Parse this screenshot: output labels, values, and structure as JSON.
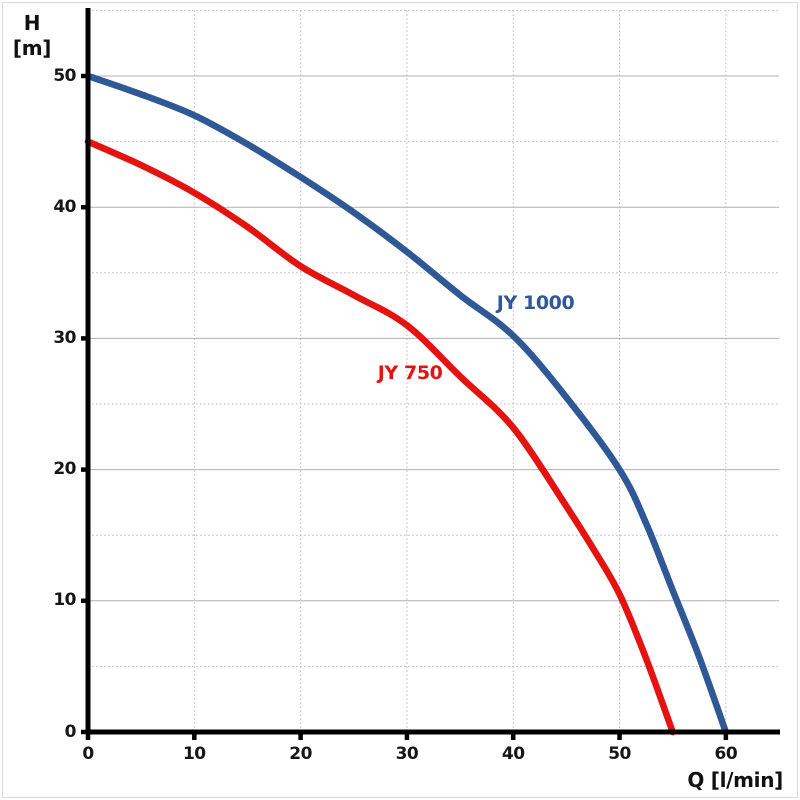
{
  "page": {
    "background": "#ffffff",
    "frame_border_color": "#dadada",
    "axis_color": "#000000",
    "tick_label_color": "#161616",
    "grid_major_color": "#b0b0b0",
    "grid_minor_color": "#bcbcbc"
  },
  "chart_data": {
    "type": "line",
    "title": "",
    "xlabel": "Q [l/min]",
    "ylabel": "H [m]",
    "ylabel_lines": [
      "H",
      "[m]"
    ],
    "xlim": [
      0,
      65
    ],
    "ylim": [
      0,
      55
    ],
    "x_ticks": [
      0,
      10,
      20,
      30,
      40,
      50,
      60
    ],
    "y_ticks": [
      0,
      10,
      20,
      30,
      40,
      50
    ],
    "x_grid_every": 10,
    "y_major_grid_every": 10,
    "y_minor_grid_every": 5,
    "grid": true,
    "legend_position": "inline-curve-labels",
    "series": [
      {
        "name": "JY 1000",
        "color": "#2F5896",
        "label_q": 42.1,
        "label_h": 32.7,
        "points": [
          [
            0,
            50
          ],
          [
            5,
            48.6
          ],
          [
            10,
            47
          ],
          [
            15,
            44.8
          ],
          [
            20,
            42.3
          ],
          [
            25,
            39.6
          ],
          [
            30,
            36.6
          ],
          [
            35,
            33.3
          ],
          [
            40,
            30.2
          ],
          [
            45,
            25.5
          ],
          [
            50,
            20
          ],
          [
            52.5,
            15.9
          ],
          [
            55,
            10.8
          ],
          [
            57.5,
            5.7
          ],
          [
            60,
            0
          ]
        ]
      },
      {
        "name": "JY 750",
        "color": "#E4130F",
        "label_q": 30.3,
        "label_h": 27.4,
        "points": [
          [
            0,
            45
          ],
          [
            5,
            43.2
          ],
          [
            10,
            41.1
          ],
          [
            15,
            38.5
          ],
          [
            20,
            35.5
          ],
          [
            25,
            33.3
          ],
          [
            30,
            31
          ],
          [
            35,
            27.1
          ],
          [
            40,
            23.2
          ],
          [
            45,
            17.2
          ],
          [
            47.5,
            14
          ],
          [
            50,
            10.5
          ],
          [
            52.5,
            5.6
          ],
          [
            55,
            0
          ]
        ]
      }
    ]
  }
}
